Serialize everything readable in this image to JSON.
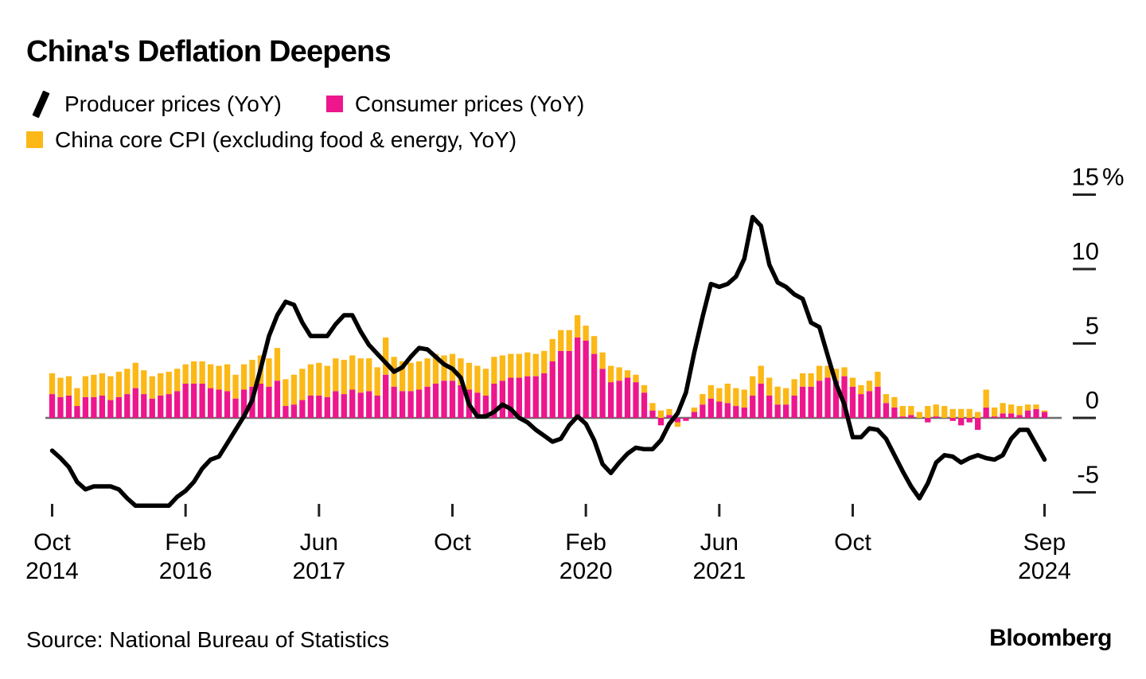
{
  "header": {
    "title": "China's Deflation Deepens"
  },
  "legend": {
    "items": [
      {
        "label": "Producer prices (YoY)",
        "icon": "line-swatch-icon",
        "color": "#000000"
      },
      {
        "label": "Consumer prices (YoY)",
        "icon": "square-swatch-icon",
        "color": "#ED168D"
      },
      {
        "label": "China core CPI (excluding food & energy, YoY)",
        "icon": "square-swatch-icon",
        "color": "#FBB817"
      }
    ]
  },
  "footer": {
    "source": "Source: National Bureau of Statistics",
    "logo": "Bloomberg"
  },
  "colors": {
    "producer_line": "#000000",
    "consumer_bar": "#ED168D",
    "core_cpi_bar": "#FBB817",
    "axis_line": "#6f6f6f",
    "tick": "#222222"
  },
  "chart_data": {
    "type": "bar+line",
    "frequency": "monthly",
    "title": "China's Deflation Deepens",
    "xlabel": "",
    "ylabel": "",
    "y_unit": "%",
    "ylim": [
      -7,
      16
    ],
    "grid": false,
    "legend_position": "top-left",
    "yticks": [
      15,
      10,
      5,
      0,
      -5
    ],
    "xticks": [
      {
        "index": 0,
        "month": "Oct",
        "year": "2014"
      },
      {
        "index": 16,
        "month": "Feb",
        "year": "2016"
      },
      {
        "index": 32,
        "month": "Jun",
        "year": "2017"
      },
      {
        "index": 48,
        "month": "Oct",
        "year": ""
      },
      {
        "index": 64,
        "month": "Feb",
        "year": "2020"
      },
      {
        "index": 80,
        "month": "Jun",
        "year": "2021"
      },
      {
        "index": 96,
        "month": "Oct",
        "year": ""
      },
      {
        "index": 119,
        "month": "Sep",
        "year": "2024"
      }
    ],
    "categories": [
      "2014-10",
      "2014-11",
      "2014-12",
      "2015-01",
      "2015-02",
      "2015-03",
      "2015-04",
      "2015-05",
      "2015-06",
      "2015-07",
      "2015-08",
      "2015-09",
      "2015-10",
      "2015-11",
      "2015-12",
      "2016-01",
      "2016-02",
      "2016-03",
      "2016-04",
      "2016-05",
      "2016-06",
      "2016-07",
      "2016-08",
      "2016-09",
      "2016-10",
      "2016-11",
      "2016-12",
      "2017-01",
      "2017-02",
      "2017-03",
      "2017-04",
      "2017-05",
      "2017-06",
      "2017-07",
      "2017-08",
      "2017-09",
      "2017-10",
      "2017-11",
      "2017-12",
      "2018-01",
      "2018-02",
      "2018-03",
      "2018-04",
      "2018-05",
      "2018-06",
      "2018-07",
      "2018-08",
      "2018-09",
      "2018-10",
      "2018-11",
      "2018-12",
      "2019-01",
      "2019-02",
      "2019-03",
      "2019-04",
      "2019-05",
      "2019-06",
      "2019-07",
      "2019-08",
      "2019-09",
      "2019-10",
      "2019-11",
      "2019-12",
      "2020-01",
      "2020-02",
      "2020-03",
      "2020-04",
      "2020-05",
      "2020-06",
      "2020-07",
      "2020-08",
      "2020-09",
      "2020-10",
      "2020-11",
      "2020-12",
      "2021-01",
      "2021-02",
      "2021-03",
      "2021-04",
      "2021-05",
      "2021-06",
      "2021-07",
      "2021-08",
      "2021-09",
      "2021-10",
      "2021-11",
      "2021-12",
      "2022-01",
      "2022-02",
      "2022-03",
      "2022-04",
      "2022-05",
      "2022-06",
      "2022-07",
      "2022-08",
      "2022-09",
      "2022-10",
      "2022-11",
      "2022-12",
      "2023-01",
      "2023-02",
      "2023-03",
      "2023-04",
      "2023-05",
      "2023-06",
      "2023-07",
      "2023-08",
      "2023-09",
      "2023-10",
      "2023-11",
      "2023-12",
      "2024-01",
      "2024-02",
      "2024-03",
      "2024-04",
      "2024-05",
      "2024-06",
      "2024-07",
      "2024-08",
      "2024-09"
    ],
    "series": [
      {
        "name": "Producer prices (YoY)",
        "type": "line",
        "color": "#000000",
        "values": [
          -2.2,
          -2.7,
          -3.3,
          -4.3,
          -4.8,
          -4.6,
          -4.6,
          -4.6,
          -4.8,
          -5.4,
          -5.9,
          -5.9,
          -5.9,
          -5.9,
          -5.9,
          -5.3,
          -4.9,
          -4.3,
          -3.4,
          -2.8,
          -2.6,
          -1.7,
          -0.8,
          0.1,
          1.2,
          3.3,
          5.5,
          6.9,
          7.8,
          7.6,
          6.4,
          5.5,
          5.5,
          5.5,
          6.3,
          6.9,
          6.9,
          5.8,
          4.9,
          4.3,
          3.7,
          3.1,
          3.4,
          4.1,
          4.7,
          4.6,
          4.1,
          3.6,
          3.3,
          2.7,
          0.9,
          0.1,
          0.1,
          0.4,
          0.9,
          0.6,
          0.0,
          -0.3,
          -0.8,
          -1.2,
          -1.6,
          -1.4,
          -0.5,
          0.1,
          -0.4,
          -1.5,
          -3.1,
          -3.7,
          -3.0,
          -2.4,
          -2.0,
          -2.1,
          -2.1,
          -1.5,
          -0.4,
          0.3,
          1.7,
          4.4,
          6.8,
          9.0,
          8.8,
          9.0,
          9.5,
          10.7,
          13.5,
          12.9,
          10.3,
          9.1,
          8.8,
          8.3,
          8.0,
          6.4,
          6.1,
          4.2,
          2.3,
          0.9,
          -1.3,
          -1.3,
          -0.7,
          -0.8,
          -1.4,
          -2.5,
          -3.6,
          -4.6,
          -5.4,
          -4.4,
          -3.0,
          -2.5,
          -2.6,
          -3.0,
          -2.7,
          -2.5,
          -2.7,
          -2.8,
          -2.5,
          -1.4,
          -0.8,
          -0.8,
          -1.8,
          -2.8
        ]
      },
      {
        "name": "Consumer prices (YoY)",
        "type": "bar",
        "stacked": true,
        "color": "#ED168D",
        "values": [
          1.6,
          1.4,
          1.5,
          0.8,
          1.4,
          1.4,
          1.5,
          1.2,
          1.4,
          1.6,
          2.0,
          1.6,
          1.3,
          1.5,
          1.6,
          1.8,
          2.3,
          2.3,
          2.3,
          2.0,
          1.9,
          1.8,
          1.3,
          1.9,
          2.1,
          2.3,
          2.1,
          2.5,
          0.8,
          0.9,
          1.2,
          1.5,
          1.5,
          1.4,
          1.8,
          1.6,
          1.9,
          1.7,
          1.8,
          1.5,
          2.9,
          2.1,
          1.8,
          1.8,
          1.9,
          2.1,
          2.3,
          2.5,
          2.5,
          2.2,
          1.9,
          1.7,
          1.5,
          2.3,
          2.5,
          2.7,
          2.7,
          2.8,
          2.8,
          3.0,
          3.8,
          4.5,
          4.5,
          5.4,
          5.2,
          4.3,
          3.3,
          2.4,
          2.5,
          2.7,
          2.4,
          1.7,
          0.5,
          -0.5,
          0.2,
          -0.3,
          -0.2,
          0.4,
          0.9,
          1.3,
          1.1,
          1.0,
          0.8,
          0.7,
          1.5,
          2.3,
          1.5,
          0.9,
          0.9,
          1.5,
          2.1,
          2.1,
          2.5,
          2.7,
          2.5,
          2.8,
          2.1,
          1.6,
          1.8,
          2.1,
          1.0,
          0.7,
          0.1,
          0.2,
          0.0,
          -0.3,
          0.1,
          0.0,
          -0.2,
          -0.5,
          -0.3,
          -0.8,
          0.7,
          0.1,
          0.3,
          0.3,
          0.2,
          0.5,
          0.6,
          0.4
        ]
      },
      {
        "name": "China core CPI (excluding food & energy, YoY)",
        "type": "bar",
        "stacked": true,
        "color": "#FBB817",
        "values": [
          1.4,
          1.3,
          1.3,
          1.2,
          1.4,
          1.5,
          1.5,
          1.6,
          1.7,
          1.7,
          1.7,
          1.6,
          1.5,
          1.5,
          1.5,
          1.5,
          1.3,
          1.5,
          1.5,
          1.6,
          1.6,
          1.8,
          1.6,
          1.7,
          1.8,
          1.9,
          1.9,
          2.2,
          1.8,
          2.0,
          2.1,
          2.1,
          2.2,
          2.1,
          2.2,
          2.3,
          2.3,
          2.3,
          2.2,
          1.9,
          2.5,
          2.0,
          2.0,
          1.9,
          1.9,
          1.9,
          2.0,
          1.7,
          1.8,
          1.8,
          1.8,
          1.8,
          1.8,
          1.8,
          1.7,
          1.6,
          1.6,
          1.6,
          1.5,
          1.5,
          1.5,
          1.4,
          1.4,
          1.5,
          1.0,
          1.2,
          1.1,
          1.1,
          0.9,
          0.5,
          0.5,
          0.5,
          0.5,
          0.5,
          0.4,
          -0.3,
          0.0,
          0.3,
          0.7,
          0.9,
          0.9,
          1.3,
          1.2,
          1.2,
          1.3,
          1.2,
          1.2,
          1.2,
          1.1,
          1.1,
          0.9,
          0.9,
          1.0,
          0.8,
          0.8,
          0.6,
          0.6,
          0.6,
          0.7,
          1.0,
          0.6,
          0.7,
          0.7,
          0.6,
          0.4,
          0.8,
          0.8,
          0.8,
          0.6,
          0.6,
          0.6,
          0.4,
          1.2,
          0.6,
          0.7,
          0.6,
          0.6,
          0.4,
          0.3,
          0.1
        ]
      }
    ]
  }
}
